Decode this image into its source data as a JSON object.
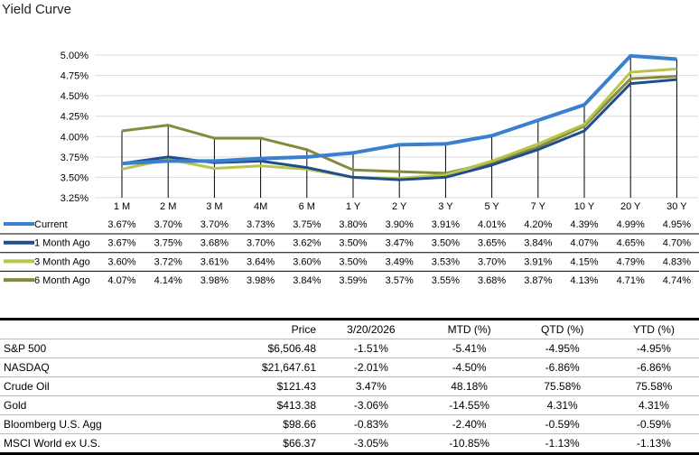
{
  "title": "Yield Curve",
  "chart_data": {
    "type": "line",
    "title": "Yield Curve",
    "categories": [
      "1 M",
      "2 M",
      "3 M",
      "4M",
      "6 M",
      "1 Y",
      "2 Y",
      "3 Y",
      "5 Y",
      "7 Y",
      "10 Y",
      "20 Y",
      "30 Y"
    ],
    "ylim": [
      3.25,
      5.0
    ],
    "yticks": [
      "3.25%",
      "3.50%",
      "3.75%",
      "4.00%",
      "4.25%",
      "4.50%",
      "4.75%",
      "5.00%"
    ],
    "grid": true,
    "legend": "data-table-bottom",
    "series": [
      {
        "name": "Current",
        "color": "#3b7fd1",
        "values": [
          3.67,
          3.7,
          3.7,
          3.73,
          3.75,
          3.8,
          3.9,
          3.91,
          4.01,
          4.2,
          4.39,
          4.99,
          4.95
        ],
        "labels": [
          "3.67%",
          "3.70%",
          "3.70%",
          "3.73%",
          "3.75%",
          "3.80%",
          "3.90%",
          "3.91%",
          "4.01%",
          "4.20%",
          "4.39%",
          "4.99%",
          "4.95%"
        ]
      },
      {
        "name": "1 Month Ago",
        "color": "#1f4e8c",
        "values": [
          3.67,
          3.75,
          3.68,
          3.7,
          3.62,
          3.5,
          3.47,
          3.5,
          3.65,
          3.84,
          4.07,
          4.65,
          4.7
        ],
        "labels": [
          "3.67%",
          "3.75%",
          "3.68%",
          "3.70%",
          "3.62%",
          "3.50%",
          "3.47%",
          "3.50%",
          "3.65%",
          "3.84%",
          "4.07%",
          "4.65%",
          "4.70%"
        ]
      },
      {
        "name": "3 Month Ago",
        "color": "#b8c44c",
        "values": [
          3.6,
          3.72,
          3.61,
          3.64,
          3.6,
          3.5,
          3.49,
          3.53,
          3.7,
          3.91,
          4.15,
          4.79,
          4.83
        ],
        "labels": [
          "3.60%",
          "3.72%",
          "3.61%",
          "3.64%",
          "3.60%",
          "3.50%",
          "3.49%",
          "3.53%",
          "3.70%",
          "3.91%",
          "4.15%",
          "4.79%",
          "4.83%"
        ]
      },
      {
        "name": "6 Month Ago",
        "color": "#878a3e",
        "values": [
          4.07,
          4.14,
          3.98,
          3.98,
          3.84,
          3.59,
          3.57,
          3.55,
          3.68,
          3.87,
          4.13,
          4.71,
          4.74
        ],
        "labels": [
          "4.07%",
          "4.14%",
          "3.98%",
          "3.98%",
          "3.84%",
          "3.59%",
          "3.57%",
          "3.55%",
          "3.68%",
          "3.87%",
          "4.13%",
          "4.71%",
          "4.74%"
        ]
      }
    ]
  },
  "market_table": {
    "headers": [
      "",
      "Price",
      "3/20/2026",
      "MTD (%)",
      "QTD (%)",
      "YTD (%)"
    ],
    "rows": [
      [
        "S&P 500",
        "$6,506.48",
        "-1.51%",
        "-5.41%",
        "-4.95%",
        "-4.95%"
      ],
      [
        "NASDAQ",
        "$21,647.61",
        "-2.01%",
        "-4.50%",
        "-6.86%",
        "-6.86%"
      ],
      [
        "Crude Oil",
        "$121.43",
        "3.47%",
        "48.18%",
        "75.58%",
        "75.58%"
      ],
      [
        "Gold",
        "$413.38",
        "-3.06%",
        "-14.55%",
        "4.31%",
        "4.31%"
      ],
      [
        "Bloomberg U.S. Agg",
        "$98.66",
        "-0.83%",
        "-2.40%",
        "-0.59%",
        "-0.59%"
      ],
      [
        "MSCI World ex U.S.",
        "$66.37",
        "-3.05%",
        "-10.85%",
        "-1.13%",
        "-1.13%"
      ]
    ]
  }
}
